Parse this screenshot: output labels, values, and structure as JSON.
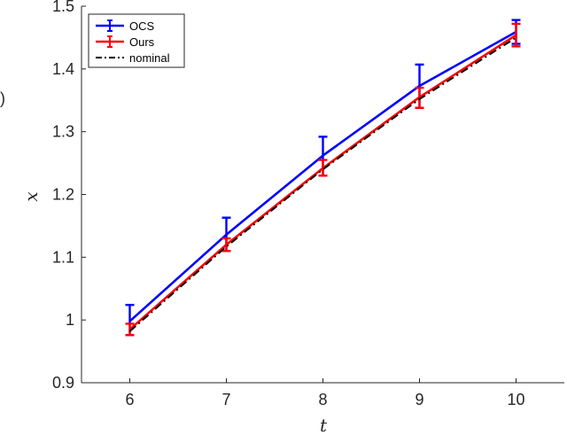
{
  "chart_data": {
    "type": "line",
    "xlabel": "t",
    "ylabel": "x",
    "xlim": [
      5.5,
      10.5
    ],
    "ylim": [
      0.9,
      1.5
    ],
    "x": [
      6,
      7,
      8,
      9,
      10
    ],
    "xticks": [
      "6",
      "7",
      "8",
      "9",
      "10"
    ],
    "yticks": [
      "0.9",
      "1",
      "1.1",
      "1.2",
      "1.3",
      "1.4",
      "1.5"
    ],
    "ytick_values": [
      0.9,
      1.0,
      1.1,
      1.2,
      1.3,
      1.4,
      1.5
    ],
    "grid": false,
    "legend_position": "top-left",
    "edge_glyph": ")",
    "series": [
      {
        "name": "OCS",
        "color": "#0000ff",
        "style": "solid-errorbar",
        "values": [
          0.998,
          1.136,
          1.262,
          1.373,
          1.459
        ],
        "err_low": [
          0.976,
          1.11,
          1.23,
          1.338,
          1.44
        ],
        "err_high": [
          1.024,
          1.163,
          1.292,
          1.407,
          1.478
        ]
      },
      {
        "name": "Ours",
        "color": "#ff0000",
        "style": "solid-errorbar",
        "values": [
          0.985,
          1.12,
          1.242,
          1.355,
          1.454
        ],
        "err_low": [
          0.976,
          1.11,
          1.23,
          1.338,
          1.436
        ],
        "err_high": [
          0.994,
          1.13,
          1.255,
          1.37,
          1.472
        ]
      },
      {
        "name": "nominal",
        "color": "#000000",
        "style": "dash-dot",
        "values": [
          0.982,
          1.117,
          1.24,
          1.352,
          1.45
        ]
      }
    ]
  }
}
